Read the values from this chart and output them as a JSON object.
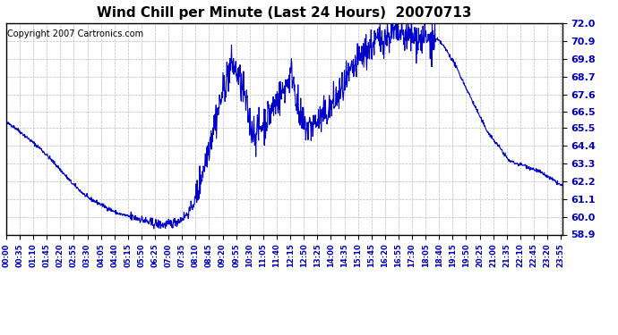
{
  "title": "Wind Chill per Minute (Last 24 Hours)  20070713",
  "copyright": "Copyright 2007 Cartronics.com",
  "line_color": "#0000CC",
  "bg_color": "#ffffff",
  "grid_color": "#aaaaaa",
  "ylim": [
    58.9,
    72.0
  ],
  "yticks": [
    58.9,
    60.0,
    61.1,
    62.2,
    63.3,
    64.4,
    65.5,
    66.5,
    67.6,
    68.7,
    69.8,
    70.9,
    72.0
  ],
  "tick_color": "#0000BB",
  "title_fontsize": 11,
  "xlabel_fontsize": 6,
  "ylabel_fontsize": 8,
  "n_minutes": 1440,
  "tick_interval": 35,
  "tick_labels": [
    "00:00",
    "00:35",
    "01:10",
    "01:45",
    "02:20",
    "02:55",
    "03:30",
    "04:05",
    "04:40",
    "05:15",
    "05:50",
    "06:25",
    "07:00",
    "07:35",
    "08:10",
    "08:45",
    "09:20",
    "09:55",
    "10:30",
    "11:05",
    "11:40",
    "12:15",
    "12:50",
    "13:25",
    "14:00",
    "14:35",
    "15:10",
    "15:45",
    "16:20",
    "16:55",
    "17:30",
    "18:05",
    "18:40",
    "19:15",
    "19:50",
    "20:25",
    "21:00",
    "21:35",
    "22:10",
    "22:45",
    "23:20",
    "23:55"
  ],
  "key_t": [
    0,
    10,
    25,
    50,
    90,
    130,
    170,
    210,
    250,
    290,
    320,
    340,
    355,
    365,
    375,
    390,
    410,
    430,
    450,
    470,
    485,
    495,
    505,
    515,
    525,
    535,
    545,
    555,
    565,
    575,
    585,
    600,
    615,
    625,
    635,
    645,
    655,
    665,
    680,
    695,
    710,
    725,
    740,
    760,
    780,
    800,
    820,
    840,
    860,
    880,
    900,
    920,
    940,
    960,
    980,
    1000,
    1020,
    1040,
    1060,
    1080,
    1100,
    1115,
    1125,
    1140,
    1160,
    1180,
    1200,
    1220,
    1240,
    1260,
    1280,
    1300,
    1320,
    1340,
    1360,
    1380,
    1400,
    1420,
    1439
  ],
  "key_v": [
    65.8,
    65.75,
    65.5,
    65.0,
    64.2,
    63.2,
    62.1,
    61.2,
    60.7,
    60.2,
    60.0,
    59.9,
    59.8,
    59.7,
    59.6,
    59.55,
    59.5,
    59.6,
    59.8,
    60.2,
    60.8,
    61.5,
    62.5,
    63.5,
    64.5,
    65.5,
    66.3,
    67.2,
    68.2,
    69.0,
    69.5,
    68.8,
    67.6,
    66.5,
    65.5,
    65.2,
    65.4,
    65.8,
    66.3,
    67.0,
    67.5,
    68.2,
    69.0,
    66.0,
    65.5,
    65.8,
    66.2,
    66.8,
    67.5,
    68.3,
    69.2,
    70.0,
    70.5,
    70.9,
    71.2,
    71.4,
    71.3,
    71.2,
    71.1,
    71.0,
    70.9,
    71.0,
    70.8,
    70.3,
    69.5,
    68.5,
    67.5,
    66.5,
    65.5,
    64.8,
    64.2,
    63.5,
    63.3,
    63.2,
    63.0,
    62.8,
    62.5,
    62.2,
    61.9
  ],
  "random_seed": 42
}
